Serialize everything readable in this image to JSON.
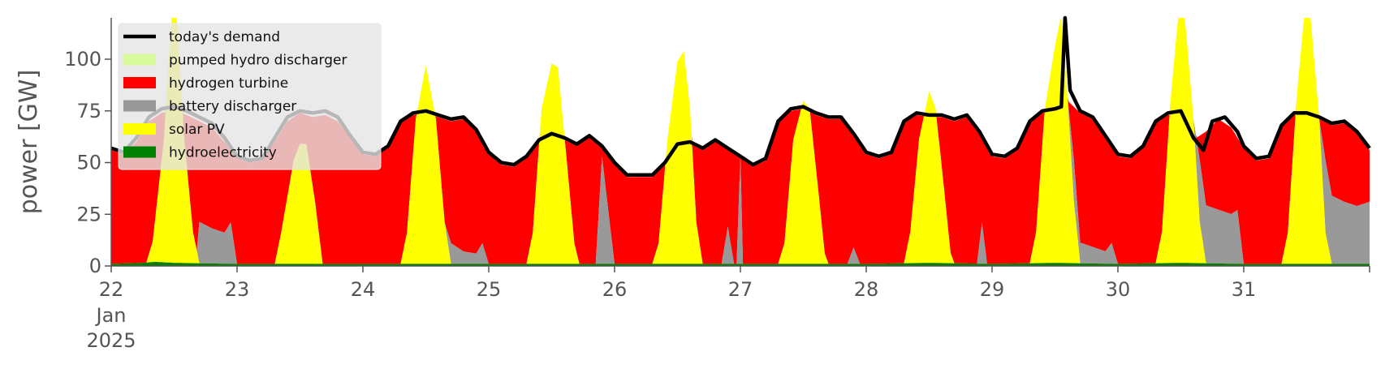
{
  "chart_data": {
    "type": "area",
    "ylabel": "power [GW]",
    "ylim": [
      0,
      120
    ],
    "yticks": [
      0,
      25,
      50,
      75,
      100
    ],
    "xlim": [
      22,
      32
    ],
    "xticks": [
      22,
      23,
      24,
      25,
      26,
      27,
      28,
      29,
      30,
      31
    ],
    "xtick_labels": [
      "22",
      "23",
      "24",
      "25",
      "26",
      "27",
      "28",
      "29",
      "30",
      "31"
    ],
    "x_first_sublabels": [
      "Jan",
      "2025"
    ],
    "x_unit": "day of January 2025",
    "legend_position": "top-left",
    "stack_order": [
      "hydroelectricity",
      "solar PV",
      "battery discharger",
      "hydrogen turbine",
      "pumped hydro discharger"
    ],
    "series_colors": {
      "today's demand": "#000000",
      "pumped hydro discharger": "#d9f99d",
      "hydrogen turbine": "#ff0000",
      "battery discharger": "#999999",
      "solar PV": "#ffff00",
      "hydroelectricity": "#008000"
    },
    "legend": [
      {
        "label": "today's demand",
        "kind": "line",
        "color": "#000000"
      },
      {
        "label": "pumped hydro discharger",
        "kind": "patch",
        "color": "#d9f99d"
      },
      {
        "label": "hydrogen turbine",
        "kind": "patch",
        "color": "#ff0000"
      },
      {
        "label": "battery discharger",
        "kind": "patch",
        "color": "#999999"
      },
      {
        "label": "solar PV",
        "kind": "patch",
        "color": "#ffff00"
      },
      {
        "label": "hydroelectricity",
        "kind": "patch",
        "color": "#008000"
      }
    ],
    "demand": [
      [
        22.0,
        57
      ],
      [
        22.1,
        55
      ],
      [
        22.2,
        62
      ],
      [
        22.3,
        72
      ],
      [
        22.4,
        76
      ],
      [
        22.5,
        77
      ],
      [
        22.6,
        75
      ],
      [
        22.7,
        72
      ],
      [
        22.8,
        69
      ],
      [
        22.9,
        62
      ],
      [
        23.0,
        53
      ],
      [
        23.1,
        51
      ],
      [
        23.2,
        52
      ],
      [
        23.3,
        62
      ],
      [
        23.4,
        72
      ],
      [
        23.5,
        75
      ],
      [
        23.6,
        74
      ],
      [
        23.7,
        75
      ],
      [
        23.8,
        72
      ],
      [
        23.9,
        63
      ],
      [
        24.0,
        55
      ],
      [
        24.1,
        54
      ],
      [
        24.2,
        58
      ],
      [
        24.3,
        70
      ],
      [
        24.4,
        74
      ],
      [
        24.5,
        75
      ],
      [
        24.6,
        73
      ],
      [
        24.7,
        71
      ],
      [
        24.8,
        72
      ],
      [
        24.9,
        66
      ],
      [
        25.0,
        55
      ],
      [
        25.1,
        50
      ],
      [
        25.2,
        49
      ],
      [
        25.3,
        53
      ],
      [
        25.4,
        61
      ],
      [
        25.5,
        64
      ],
      [
        25.6,
        62
      ],
      [
        25.7,
        59
      ],
      [
        25.8,
        63
      ],
      [
        25.9,
        58
      ],
      [
        26.0,
        50
      ],
      [
        26.1,
        44
      ],
      [
        26.2,
        44
      ],
      [
        26.3,
        44
      ],
      [
        26.4,
        50
      ],
      [
        26.5,
        59
      ],
      [
        26.6,
        60
      ],
      [
        26.7,
        57
      ],
      [
        26.8,
        61
      ],
      [
        26.9,
        57
      ],
      [
        27.0,
        53
      ],
      [
        27.1,
        49
      ],
      [
        27.2,
        52
      ],
      [
        27.3,
        70
      ],
      [
        27.4,
        76
      ],
      [
        27.5,
        77
      ],
      [
        27.6,
        74
      ],
      [
        27.7,
        72
      ],
      [
        27.8,
        72
      ],
      [
        27.9,
        64
      ],
      [
        28.0,
        55
      ],
      [
        28.1,
        53
      ],
      [
        28.2,
        55
      ],
      [
        28.3,
        70
      ],
      [
        28.4,
        74
      ],
      [
        28.5,
        73
      ],
      [
        28.6,
        73
      ],
      [
        28.7,
        71
      ],
      [
        28.8,
        73
      ],
      [
        28.9,
        65
      ],
      [
        29.0,
        54
      ],
      [
        29.1,
        53
      ],
      [
        29.2,
        57
      ],
      [
        29.3,
        70
      ],
      [
        29.4,
        75
      ],
      [
        29.5,
        76
      ],
      [
        29.55,
        77
      ],
      [
        29.58,
        120
      ],
      [
        29.62,
        85
      ],
      [
        29.7,
        75
      ],
      [
        29.8,
        72
      ],
      [
        29.9,
        63
      ],
      [
        30.0,
        54
      ],
      [
        30.1,
        53
      ],
      [
        30.2,
        58
      ],
      [
        30.3,
        70
      ],
      [
        30.4,
        74
      ],
      [
        30.5,
        75
      ],
      [
        30.6,
        62
      ],
      [
        30.68,
        56
      ],
      [
        30.75,
        70
      ],
      [
        30.85,
        72
      ],
      [
        30.95,
        65
      ],
      [
        31.0,
        58
      ],
      [
        31.1,
        52
      ],
      [
        31.2,
        53
      ],
      [
        31.3,
        68
      ],
      [
        31.4,
        74
      ],
      [
        31.5,
        74
      ],
      [
        31.6,
        72
      ],
      [
        31.7,
        69
      ],
      [
        31.8,
        70
      ],
      [
        31.9,
        65
      ],
      [
        32.0,
        57
      ]
    ],
    "hydroelectricity": [
      [
        22.0,
        1
      ],
      [
        22.25,
        1.5
      ],
      [
        22.35,
        2
      ],
      [
        22.5,
        1.5
      ],
      [
        23.0,
        1
      ],
      [
        23.5,
        1
      ],
      [
        24.0,
        1
      ],
      [
        24.5,
        1
      ],
      [
        25.0,
        1
      ],
      [
        25.5,
        1
      ],
      [
        26.0,
        1
      ],
      [
        26.5,
        1
      ],
      [
        27.0,
        1
      ],
      [
        27.5,
        1
      ],
      [
        28.0,
        1
      ],
      [
        28.5,
        1.5
      ],
      [
        29.0,
        1
      ],
      [
        29.5,
        1.5
      ],
      [
        30.0,
        1
      ],
      [
        30.5,
        1.5
      ],
      [
        31.0,
        1
      ],
      [
        31.5,
        1
      ],
      [
        32.0,
        1
      ]
    ],
    "solar_pv": [
      [
        22.0,
        0
      ],
      [
        22.28,
        0
      ],
      [
        22.33,
        10
      ],
      [
        22.42,
        60
      ],
      [
        22.48,
        120
      ],
      [
        22.52,
        120
      ],
      [
        22.58,
        60
      ],
      [
        22.65,
        15
      ],
      [
        22.7,
        0
      ],
      [
        23.3,
        0
      ],
      [
        23.35,
        15
      ],
      [
        23.45,
        50
      ],
      [
        23.5,
        58
      ],
      [
        23.55,
        58
      ],
      [
        23.62,
        30
      ],
      [
        23.68,
        0
      ],
      [
        24.3,
        0
      ],
      [
        24.35,
        15
      ],
      [
        24.42,
        70
      ],
      [
        24.5,
        96
      ],
      [
        24.58,
        70
      ],
      [
        24.65,
        20
      ],
      [
        24.7,
        0
      ],
      [
        25.3,
        0
      ],
      [
        25.35,
        15
      ],
      [
        25.42,
        75
      ],
      [
        25.5,
        97
      ],
      [
        25.55,
        95
      ],
      [
        25.62,
        50
      ],
      [
        25.68,
        10
      ],
      [
        25.72,
        0
      ],
      [
        26.3,
        0
      ],
      [
        26.35,
        10
      ],
      [
        26.42,
        60
      ],
      [
        26.5,
        98
      ],
      [
        26.55,
        103
      ],
      [
        26.6,
        75
      ],
      [
        26.65,
        20
      ],
      [
        26.7,
        0
      ],
      [
        27.3,
        0
      ],
      [
        27.35,
        10
      ],
      [
        27.42,
        60
      ],
      [
        27.5,
        79
      ],
      [
        27.55,
        75
      ],
      [
        27.62,
        35
      ],
      [
        27.67,
        5
      ],
      [
        27.7,
        0
      ],
      [
        28.3,
        0
      ],
      [
        28.35,
        15
      ],
      [
        28.42,
        60
      ],
      [
        28.5,
        83
      ],
      [
        28.55,
        75
      ],
      [
        28.62,
        35
      ],
      [
        28.67,
        5
      ],
      [
        28.7,
        0
      ],
      [
        29.3,
        0
      ],
      [
        29.35,
        15
      ],
      [
        29.42,
        75
      ],
      [
        29.5,
        105
      ],
      [
        29.55,
        120
      ],
      [
        29.6,
        80
      ],
      [
        29.65,
        30
      ],
      [
        29.7,
        0
      ],
      [
        30.3,
        0
      ],
      [
        30.35,
        15
      ],
      [
        30.42,
        80
      ],
      [
        30.48,
        120
      ],
      [
        30.53,
        120
      ],
      [
        30.6,
        70
      ],
      [
        30.65,
        20
      ],
      [
        30.7,
        0
      ],
      [
        31.3,
        0
      ],
      [
        31.35,
        15
      ],
      [
        31.42,
        80
      ],
      [
        31.48,
        120
      ],
      [
        31.53,
        120
      ],
      [
        31.6,
        70
      ],
      [
        31.65,
        15
      ],
      [
        31.7,
        0
      ],
      [
        32.0,
        0
      ]
    ],
    "battery_discharger": [
      [
        22.0,
        0
      ],
      [
        22.68,
        0
      ],
      [
        22.7,
        20
      ],
      [
        22.8,
        17
      ],
      [
        22.9,
        15
      ],
      [
        22.95,
        20
      ],
      [
        23.0,
        0
      ],
      [
        24.65,
        0
      ],
      [
        24.7,
        10
      ],
      [
        24.8,
        6
      ],
      [
        24.9,
        5
      ],
      [
        24.95,
        10
      ],
      [
        25.0,
        0
      ],
      [
        25.85,
        0
      ],
      [
        25.9,
        52
      ],
      [
        26.0,
        0
      ],
      [
        26.85,
        0
      ],
      [
        26.9,
        18
      ],
      [
        26.95,
        0
      ],
      [
        26.97,
        0
      ],
      [
        27.0,
        52
      ],
      [
        27.02,
        0
      ],
      [
        27.85,
        0
      ],
      [
        27.9,
        8
      ],
      [
        27.95,
        0
      ],
      [
        28.88,
        0
      ],
      [
        28.92,
        20
      ],
      [
        28.96,
        0
      ],
      [
        29.6,
        0
      ],
      [
        29.65,
        20
      ],
      [
        29.7,
        10
      ],
      [
        29.8,
        8
      ],
      [
        29.9,
        6
      ],
      [
        29.95,
        10
      ],
      [
        30.0,
        0
      ],
      [
        30.6,
        0
      ],
      [
        30.65,
        30
      ],
      [
        30.7,
        28
      ],
      [
        30.8,
        26
      ],
      [
        30.9,
        24
      ],
      [
        30.95,
        26
      ],
      [
        31.0,
        0
      ],
      [
        31.6,
        0
      ],
      [
        31.65,
        35
      ],
      [
        31.7,
        33
      ],
      [
        31.8,
        30
      ],
      [
        31.9,
        28
      ],
      [
        32.0,
        30
      ]
    ],
    "hydrogen_turbine_top": [
      [
        22.0,
        56
      ],
      [
        22.1,
        54
      ],
      [
        22.2,
        60
      ],
      [
        22.3,
        70
      ],
      [
        22.4,
        74
      ],
      [
        22.5,
        75
      ],
      [
        22.6,
        73
      ],
      [
        22.7,
        70
      ],
      [
        22.8,
        67
      ],
      [
        22.9,
        60
      ],
      [
        23.0,
        52
      ],
      [
        23.1,
        50
      ],
      [
        23.2,
        51
      ],
      [
        23.3,
        60
      ],
      [
        23.4,
        70
      ],
      [
        23.5,
        74
      ],
      [
        23.6,
        72
      ],
      [
        23.7,
        73
      ],
      [
        23.8,
        70
      ],
      [
        23.9,
        62
      ],
      [
        24.0,
        54
      ],
      [
        24.1,
        53
      ],
      [
        24.2,
        57
      ],
      [
        24.3,
        69
      ],
      [
        24.4,
        73
      ],
      [
        24.5,
        74
      ],
      [
        24.6,
        72
      ],
      [
        24.7,
        70
      ],
      [
        24.8,
        71
      ],
      [
        24.9,
        65
      ],
      [
        25.0,
        54
      ],
      [
        25.1,
        49
      ],
      [
        25.2,
        48
      ],
      [
        25.3,
        52
      ],
      [
        25.4,
        60
      ],
      [
        25.5,
        63
      ],
      [
        25.6,
        61
      ],
      [
        25.7,
        58
      ],
      [
        25.8,
        62
      ],
      [
        25.9,
        57
      ],
      [
        26.0,
        49
      ],
      [
        26.1,
        43
      ],
      [
        26.2,
        43
      ],
      [
        26.3,
        43
      ],
      [
        26.4,
        49
      ],
      [
        26.5,
        58
      ],
      [
        26.6,
        59
      ],
      [
        26.7,
        56
      ],
      [
        26.8,
        60
      ],
      [
        26.9,
        56
      ],
      [
        27.0,
        52
      ],
      [
        27.1,
        48
      ],
      [
        27.2,
        51
      ],
      [
        27.3,
        69
      ],
      [
        27.4,
        75
      ],
      [
        27.5,
        76
      ],
      [
        27.6,
        73
      ],
      [
        27.7,
        71
      ],
      [
        27.8,
        71
      ],
      [
        27.9,
        63
      ],
      [
        28.0,
        54
      ],
      [
        28.1,
        52
      ],
      [
        28.2,
        54
      ],
      [
        28.3,
        69
      ],
      [
        28.4,
        73
      ],
      [
        28.5,
        72
      ],
      [
        28.6,
        72
      ],
      [
        28.7,
        70
      ],
      [
        28.8,
        72
      ],
      [
        28.9,
        64
      ],
      [
        29.0,
        53
      ],
      [
        29.1,
        52
      ],
      [
        29.2,
        56
      ],
      [
        29.3,
        69
      ],
      [
        29.4,
        74
      ],
      [
        29.5,
        75
      ],
      [
        29.6,
        80
      ],
      [
        29.7,
        74
      ],
      [
        29.8,
        71
      ],
      [
        29.9,
        62
      ],
      [
        30.0,
        53
      ],
      [
        30.1,
        52
      ],
      [
        30.2,
        57
      ],
      [
        30.3,
        69
      ],
      [
        30.4,
        73
      ],
      [
        30.5,
        74
      ],
      [
        30.6,
        61
      ],
      [
        30.7,
        65
      ],
      [
        30.8,
        71
      ],
      [
        30.9,
        67
      ],
      [
        31.0,
        57
      ],
      [
        31.1,
        51
      ],
      [
        31.2,
        52
      ],
      [
        31.3,
        67
      ],
      [
        31.4,
        73
      ],
      [
        31.5,
        73
      ],
      [
        31.6,
        71
      ],
      [
        31.7,
        68
      ],
      [
        31.8,
        69
      ],
      [
        31.9,
        64
      ],
      [
        32.0,
        56
      ]
    ]
  }
}
